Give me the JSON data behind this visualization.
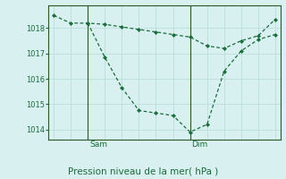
{
  "title": "Pression niveau de la mer( hPa )",
  "bg_color": "#d8f0f0",
  "grid_color": "#c0e0e0",
  "line_color": "#1a6b3a",
  "spine_color": "#2a5a2a",
  "ylim": [
    1013.6,
    1018.9
  ],
  "yticks": [
    1014,
    1015,
    1016,
    1017,
    1018
  ],
  "line1_x": [
    0,
    1,
    2,
    3,
    4,
    5,
    6,
    7,
    8,
    9,
    10,
    11,
    12,
    13
  ],
  "line1_y": [
    1018.5,
    1018.2,
    1018.2,
    1018.15,
    1018.05,
    1017.95,
    1017.85,
    1017.75,
    1017.65,
    1017.3,
    1017.2,
    1017.5,
    1017.7,
    1018.35
  ],
  "line2_x": [
    2,
    3,
    4,
    5,
    6,
    7,
    8,
    9,
    10,
    11,
    12,
    13
  ],
  "line2_y": [
    1018.2,
    1016.85,
    1015.65,
    1014.75,
    1014.65,
    1014.55,
    1013.9,
    1014.2,
    1016.3,
    1017.1,
    1017.55,
    1017.75
  ],
  "sam_x": 2,
  "dim_x": 8,
  "xlim": [
    -0.3,
    13.3
  ],
  "n_vgrid": 14
}
